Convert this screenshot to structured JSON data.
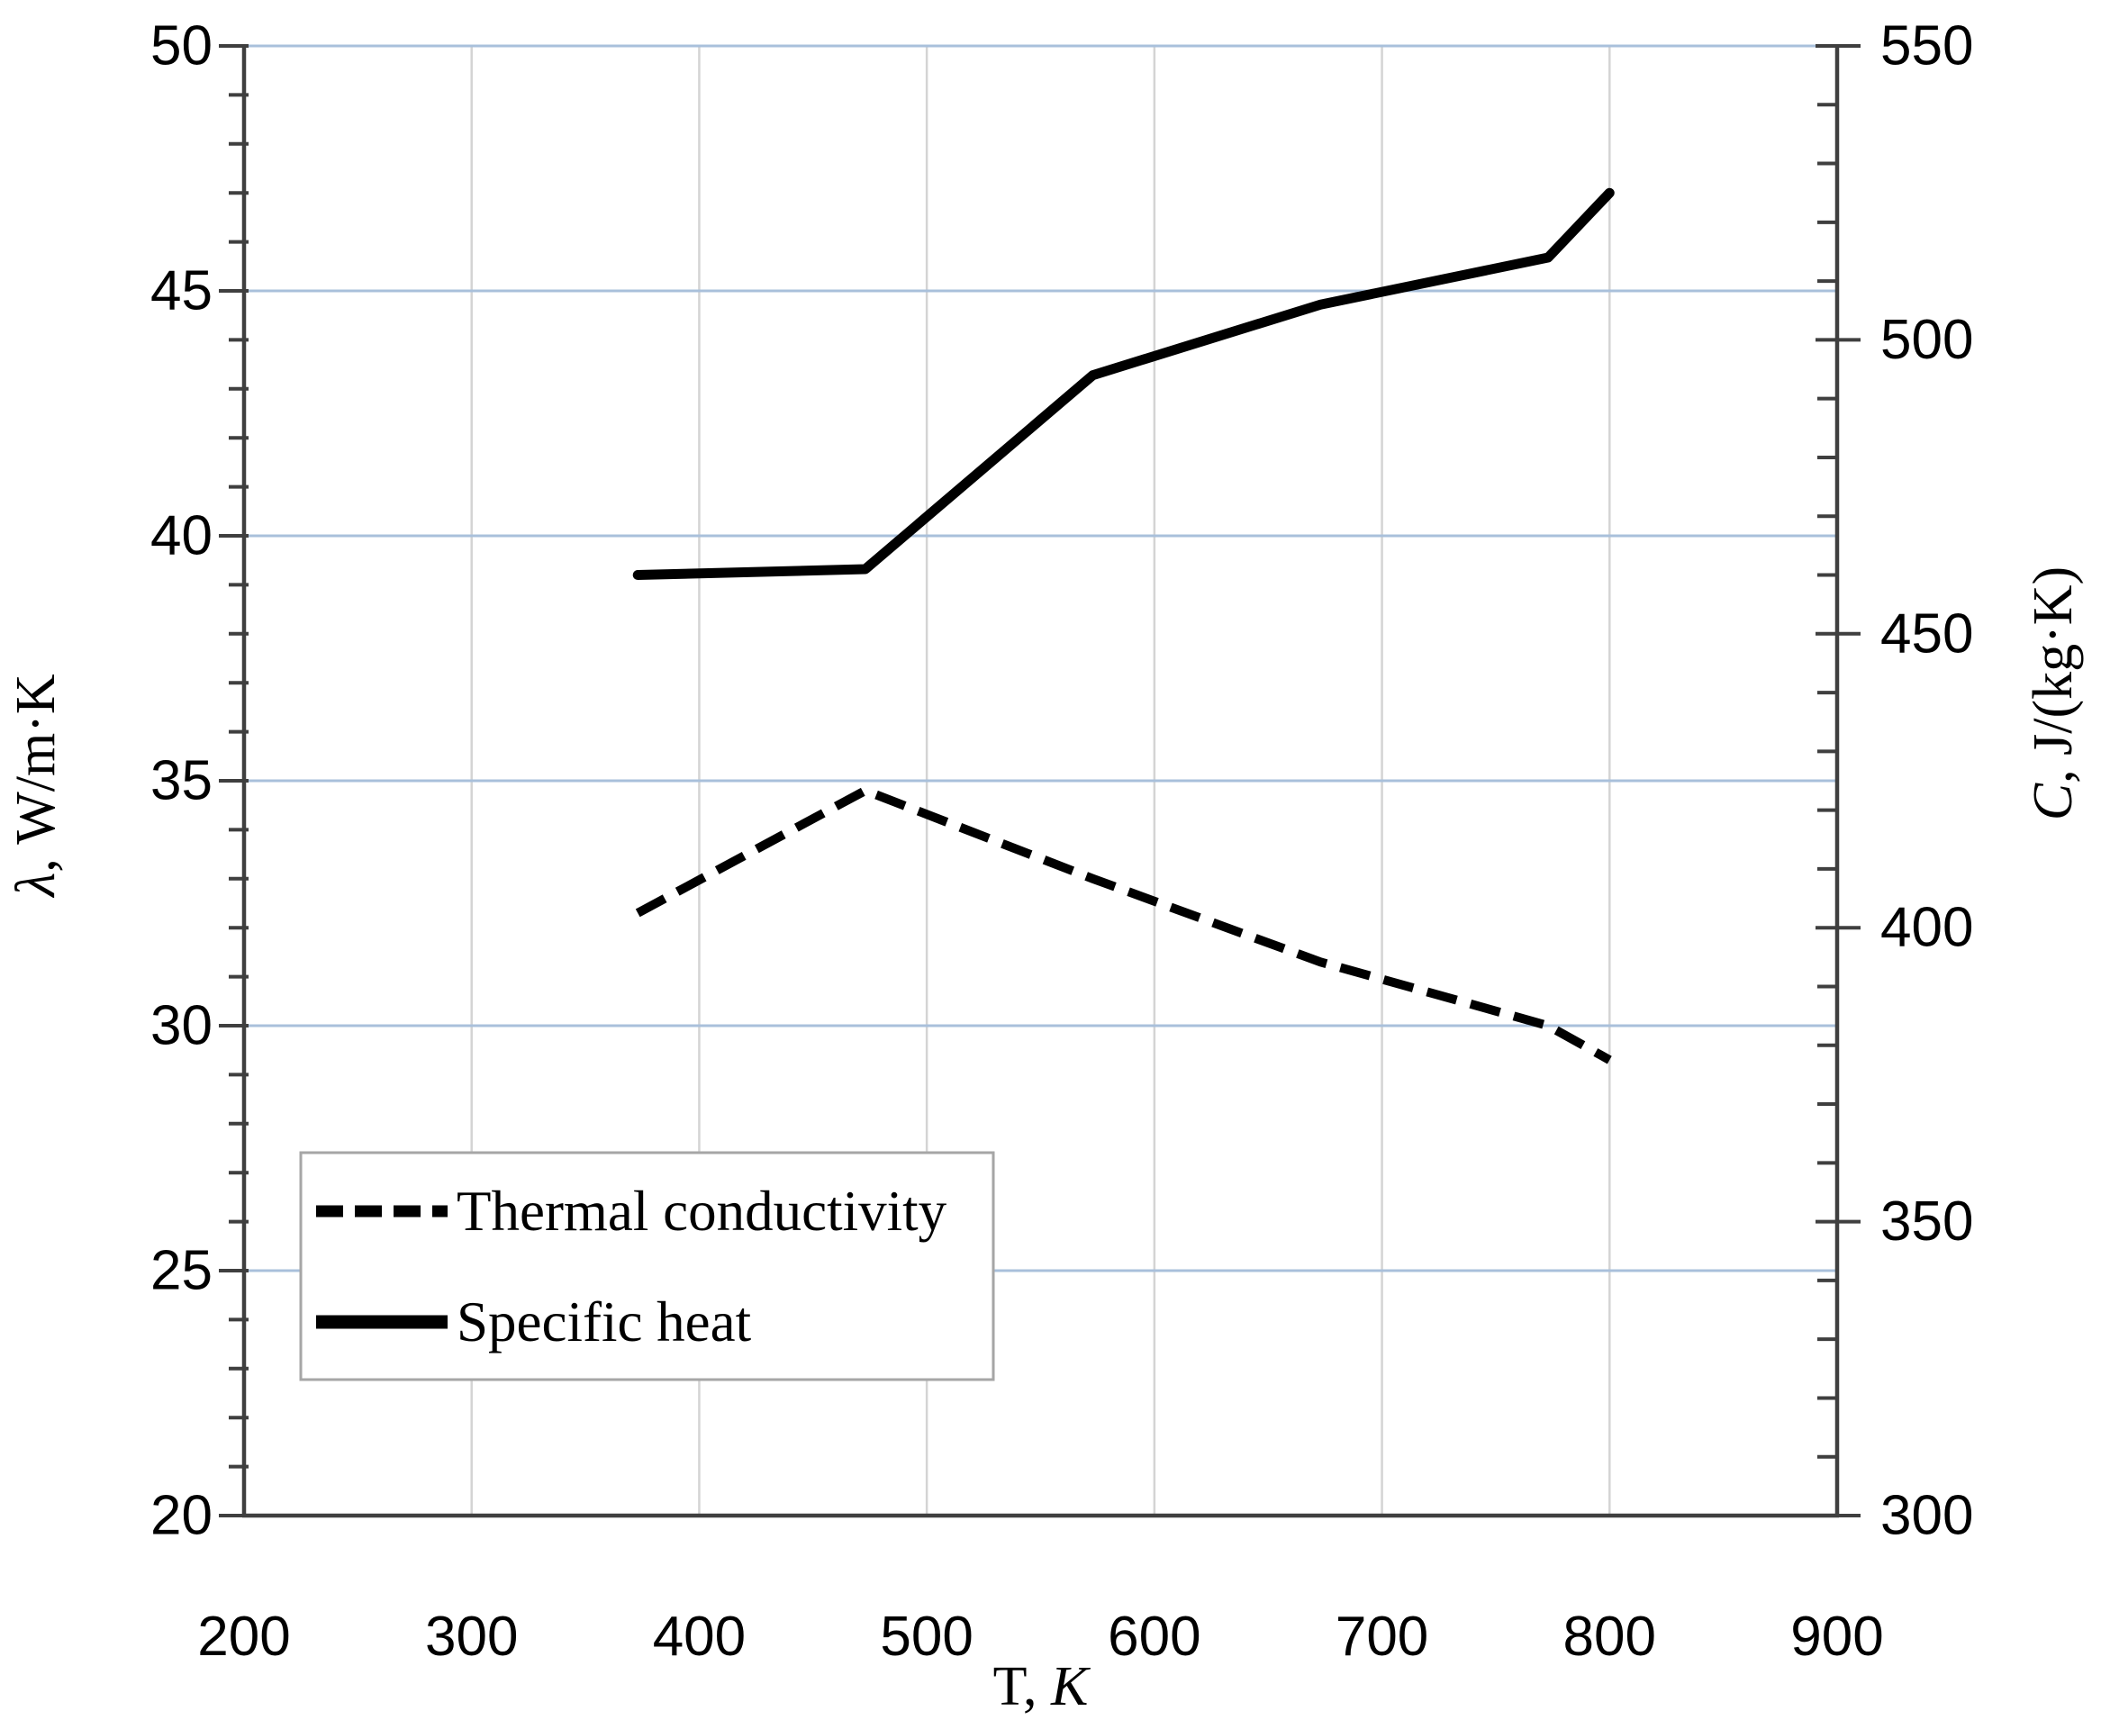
{
  "chart_data": {
    "type": "line",
    "title": "",
    "x_axis": {
      "title_parts": [
        {
          "text": "T,  ",
          "italic": false
        },
        {
          "text": "K",
          "italic": true
        }
      ],
      "min": 200,
      "max": 900,
      "tick_step": 100,
      "ticks": [
        200,
        300,
        400,
        500,
        600,
        700,
        800,
        900
      ],
      "gridlines": [
        300,
        400,
        500,
        600,
        700,
        800
      ],
      "grid": true
    },
    "y_left_axis": {
      "title_parts": [
        {
          "text": "λ",
          "italic": true
        },
        {
          "text": ", W/m·K",
          "italic": false
        }
      ],
      "min": 20,
      "max": 50,
      "major_step": 5,
      "minor_step": 1,
      "ticks": [
        20,
        25,
        30,
        35,
        40,
        45,
        50
      ],
      "gridlines": [
        25,
        30,
        35,
        40,
        45,
        50
      ],
      "grid": true
    },
    "y_right_axis": {
      "title_parts": [
        {
          "text": "C",
          "italic": true
        },
        {
          "text": ", J/(kg·K)",
          "italic": false
        }
      ],
      "min": 300,
      "max": 550,
      "major_step": 50,
      "minor_step": 10,
      "ticks": [
        300,
        350,
        400,
        450,
        500,
        550
      ]
    },
    "series": [
      {
        "name": "Thermal conductivity",
        "axis": "left",
        "line_style": "dashed",
        "color": "#000000",
        "x": [
          373,
          473,
          573,
          673,
          773,
          800
        ],
        "y": [
          32.3,
          34.8,
          33.0,
          31.3,
          30.0,
          29.3
        ]
      },
      {
        "name": "Specific heat",
        "axis": "right",
        "line_style": "solid",
        "color": "#000000",
        "x": [
          373,
          473,
          573,
          673,
          773,
          800
        ],
        "y": [
          460,
          461,
          494,
          506,
          514,
          525
        ]
      }
    ],
    "legend": {
      "position": "bottom-left",
      "entries": [
        "Thermal conductivity",
        "Specific heat"
      ]
    },
    "colors": {
      "background": "#ffffff",
      "h_gridline": "#a9c0db",
      "v_gridline": "#d4d4d4",
      "axis_line": "#3f3f3f",
      "text": "#000000",
      "legend_border": "#a6a6a6",
      "legend_fill": "#ffffff"
    }
  }
}
